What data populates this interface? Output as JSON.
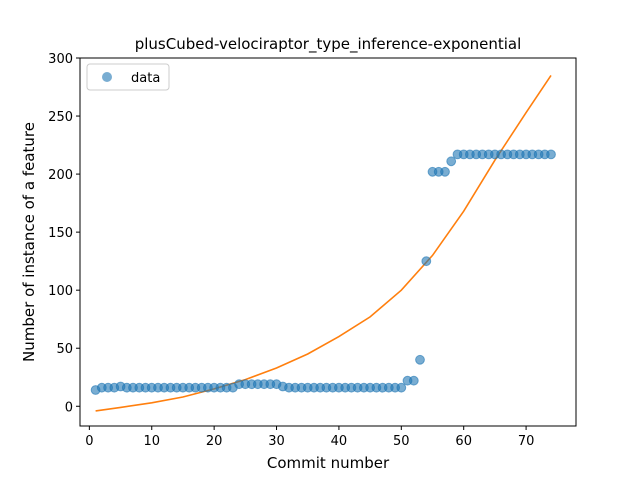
{
  "chart_data": {
    "type": "scatter",
    "title": "plusCubed-velociraptor_type_inference-exponential",
    "xlabel": "Commit number",
    "ylabel": "Number of instance of a feature",
    "xlim": [
      -1.5,
      78.0
    ],
    "ylim": [
      -17,
      300
    ],
    "xticks": [
      0,
      10,
      20,
      30,
      40,
      50,
      60,
      70
    ],
    "yticks": [
      0,
      50,
      100,
      150,
      200,
      250,
      300
    ],
    "grid": false,
    "legend": {
      "placement": "upper-left",
      "entries": [
        "data"
      ]
    },
    "series": [
      {
        "name": "data",
        "kind": "points",
        "color": "#1f77b4",
        "opacity": 0.6,
        "x": [
          1,
          2,
          3,
          4,
          5,
          6,
          7,
          8,
          9,
          10,
          11,
          12,
          13,
          14,
          15,
          16,
          17,
          18,
          19,
          20,
          21,
          22,
          23,
          24,
          25,
          26,
          27,
          28,
          29,
          30,
          31,
          32,
          33,
          34,
          35,
          36,
          37,
          38,
          39,
          40,
          41,
          42,
          43,
          44,
          45,
          46,
          47,
          48,
          49,
          50,
          51,
          52,
          53,
          54,
          55,
          56,
          57,
          58,
          59,
          60,
          61,
          62,
          63,
          64,
          65,
          66,
          67,
          68,
          69,
          70,
          71,
          72,
          73,
          74
        ],
        "y": [
          14,
          16,
          16,
          16,
          17,
          16,
          16,
          16,
          16,
          16,
          16,
          16,
          16,
          16,
          16,
          16,
          16,
          16,
          16,
          16,
          16,
          16,
          16,
          19,
          19,
          19,
          19,
          19,
          19,
          19,
          17,
          16,
          16,
          16,
          16,
          16,
          16,
          16,
          16,
          16,
          16,
          16,
          16,
          16,
          16,
          16,
          16,
          16,
          16,
          16,
          22,
          22,
          40,
          125,
          202,
          202,
          202,
          211,
          217,
          217,
          217,
          217,
          217,
          217,
          217,
          217,
          217,
          217,
          217,
          217,
          217,
          217,
          217,
          217
        ]
      },
      {
        "name": "",
        "kind": "fit-line",
        "color": "#ff7f0e",
        "x": [
          1,
          5,
          10,
          15,
          20,
          25,
          30,
          35,
          40,
          45,
          50,
          55,
          60,
          65,
          70,
          74
        ],
        "y": [
          -4,
          -1,
          3,
          8,
          15,
          23,
          33,
          45,
          60,
          77,
          100,
          130,
          168,
          212,
          253,
          285
        ]
      }
    ]
  }
}
